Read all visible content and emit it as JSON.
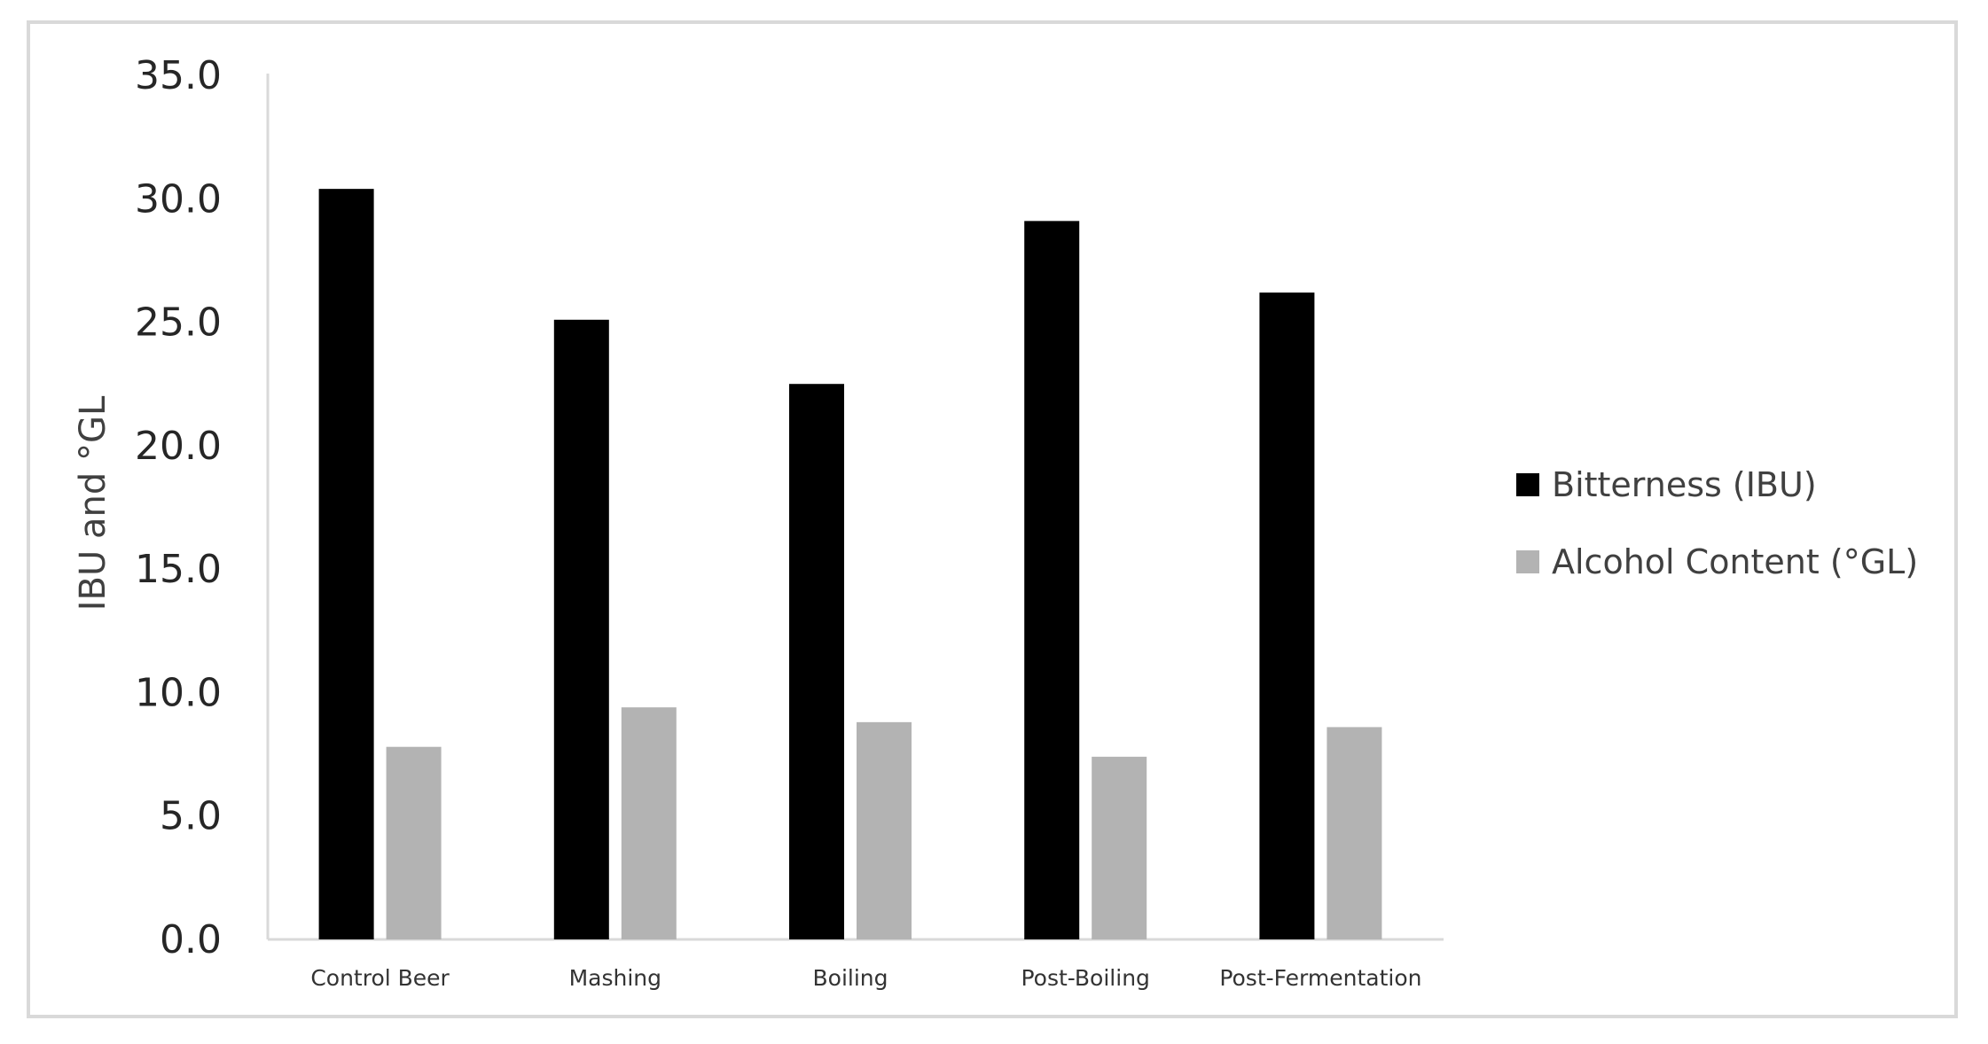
{
  "chart_data": {
    "type": "bar",
    "title": "",
    "xlabel": "",
    "ylabel": "IBU and °GL",
    "categories": [
      "Control Beer",
      "Mashing",
      "Boiling",
      "Post-Boiling",
      "Post-Fermentation"
    ],
    "series": [
      {
        "name": "Bitterness (IBU)",
        "color": "#000000",
        "values": [
          30.4,
          25.1,
          22.5,
          29.1,
          26.2
        ]
      },
      {
        "name": "Alcohol Content (°GL)",
        "color": "#b3b3b3",
        "values": [
          7.8,
          9.4,
          8.8,
          7.4,
          8.6
        ]
      }
    ],
    "ylim": [
      0,
      35
    ],
    "y_ticks": [
      "0.0",
      "5.0",
      "10.0",
      "15.0",
      "20.0",
      "25.0",
      "30.0",
      "35.0"
    ],
    "grid": false,
    "legend_position": "right",
    "axis_color": "#d9d9d9"
  }
}
